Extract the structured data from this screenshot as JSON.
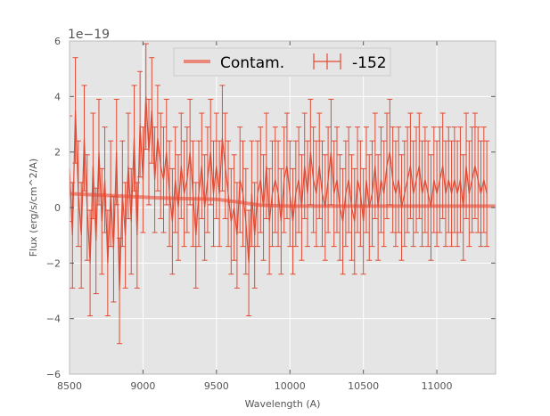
{
  "chart_data": {
    "type": "line",
    "xlabel": "Wavelength (A)",
    "ylabel": "Flux (erg/s/cm^2/A)",
    "y_offset_label": "1e−19",
    "xlim": [
      8500,
      11400
    ],
    "ylim": [
      -6,
      6
    ],
    "x_ticks": [
      8500,
      9000,
      9500,
      10000,
      10500,
      11000
    ],
    "y_ticks": [
      -6,
      -4,
      -2,
      0,
      2,
      4,
      6
    ],
    "grid": true,
    "legend_position": "top-center",
    "colors": {
      "background": "#e5e5e5",
      "grid": "#ffffff",
      "data": "#e24a33",
      "contam": "#e8877a"
    },
    "series": [
      {
        "name": "Contam.",
        "style": "thick-line",
        "x": [
          8500,
          8700,
          8900,
          9100,
          9300,
          9500,
          9650,
          9800,
          10000,
          10300,
          10600,
          10900,
          11200,
          11400
        ],
        "y": [
          0.5,
          0.45,
          0.4,
          0.35,
          0.32,
          0.3,
          0.2,
          0.08,
          0.05,
          0.05,
          0.05,
          0.05,
          0.05,
          0.05
        ]
      },
      {
        "name": "-152",
        "style": "errorbar",
        "x_start": 8500,
        "x_step": 20,
        "y": [
          1.4,
          -1.0,
          3.5,
          0.5,
          -1.0,
          2.5,
          0.0,
          -2.0,
          1.5,
          -1.2,
          2.0,
          -0.5,
          1.0,
          -2.0,
          0.5,
          -1.5,
          2.0,
          -3.0,
          0.5,
          -1.0,
          1.5,
          -0.5,
          2.5,
          -1.0,
          3.0,
          1.0,
          4.0,
          2.0,
          3.5,
          1.0,
          2.5,
          1.5,
          1.0,
          2.0,
          0.5,
          -0.5,
          1.0,
          0.0,
          1.5,
          0.5,
          1.0,
          2.0,
          0.5,
          -1.0,
          0.5,
          1.5,
          0.0,
          1.0,
          2.0,
          0.5,
          1.5,
          0.5,
          2.5,
          1.5,
          0.5,
          -0.5,
          0.0,
          -1.0,
          1.0,
          0.5,
          -0.5,
          -2.0,
          0.5,
          -1.0,
          0.5,
          1.0,
          0.0,
          1.5,
          -0.5,
          0.5,
          1.0,
          0.5,
          -0.5,
          1.0,
          1.5,
          0.5,
          -0.5,
          0.5,
          1.0,
          0.0,
          1.5,
          0.5,
          2.0,
          1.0,
          0.5,
          1.5,
          0.5,
          0.0,
          1.0,
          2.0,
          0.5,
          1.0,
          0.0,
          -0.5,
          0.5,
          1.0,
          0.0,
          -0.5,
          1.0,
          0.5,
          -0.5,
          1.0,
          0.0,
          0.5,
          1.5,
          0.0,
          1.0,
          0.5,
          1.5,
          2.0,
          1.0,
          0.5,
          1.0,
          0.0,
          0.5,
          1.0,
          1.5,
          0.5,
          1.0,
          1.5,
          0.5,
          1.0,
          0.5,
          0.0,
          1.0,
          0.5,
          1.0,
          1.5,
          0.5,
          1.0,
          0.5,
          1.0,
          0.5,
          1.0,
          0.0,
          1.5,
          0.5,
          1.0,
          1.5,
          1.0,
          0.5,
          1.0,
          0.5
        ],
        "err": 1.9
      }
    ]
  }
}
